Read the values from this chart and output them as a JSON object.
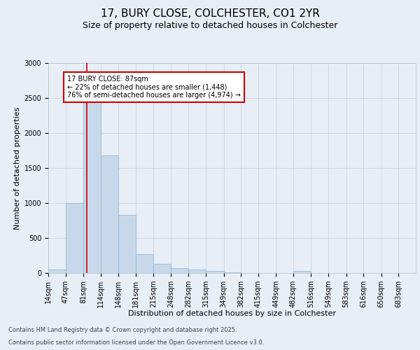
{
  "title_line1": "17, BURY CLOSE, COLCHESTER, CO1 2YR",
  "title_line2": "Size of property relative to detached houses in Colchester",
  "xlabel": "Distribution of detached houses by size in Colchester",
  "ylabel": "Number of detached properties",
  "bar_edges": [
    14,
    47,
    81,
    114,
    148,
    181,
    215,
    248,
    282,
    315,
    349,
    382,
    415,
    449,
    482,
    516,
    549,
    583,
    616,
    650,
    683
  ],
  "bar_heights": [
    50,
    1000,
    2500,
    1680,
    830,
    270,
    130,
    70,
    55,
    30,
    10,
    5,
    0,
    0,
    30,
    0,
    0,
    0,
    0,
    0,
    0
  ],
  "bar_color": "#c8d8eb",
  "bar_edge_color": "#8ab4d4",
  "property_size": 87,
  "annotation_text": "17 BURY CLOSE: 87sqm\n← 22% of detached houses are smaller (1,448)\n76% of semi-detached houses are larger (4,974) →",
  "annotation_box_color": "#ffffff",
  "annotation_box_edge_color": "#cc0000",
  "vline_color": "#cc0000",
  "grid_color": "#c8d4e0",
  "background_color": "#e8eef5",
  "ylim": [
    0,
    3000
  ],
  "yticks": [
    0,
    500,
    1000,
    1500,
    2000,
    2500,
    3000
  ],
  "footer_line1": "Contains HM Land Registry data © Crown copyright and database right 2025.",
  "footer_line2": "Contains public sector information licensed under the Open Government Licence v3.0.",
  "title_fontsize": 11,
  "subtitle_fontsize": 9,
  "axis_label_fontsize": 8,
  "tick_fontsize": 7,
  "annotation_fontsize": 7,
  "footer_fontsize": 6
}
